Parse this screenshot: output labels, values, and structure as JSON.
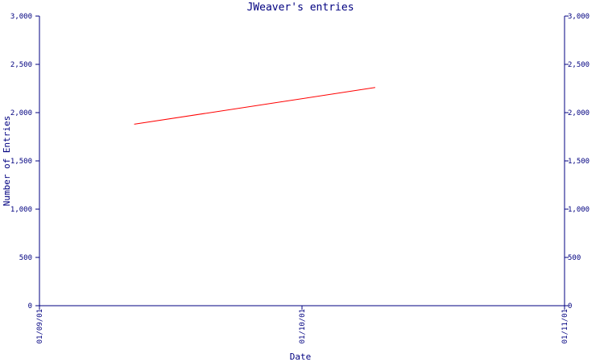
{
  "chart_data": {
    "type": "line",
    "title": "JWeaver's entries",
    "xlabel": "Date",
    "ylabel": "Number of Entries",
    "x_ticks": [
      "01/09/01",
      "01/10/01",
      "01/11/01"
    ],
    "y_ticks": [
      "0",
      "500",
      "1,000",
      "1,500",
      "2,000",
      "2,500",
      "3,000"
    ],
    "y_tick_values": [
      0,
      500,
      1000,
      1500,
      2000,
      2500,
      3000
    ],
    "ylim": [
      0,
      3000
    ],
    "xlim": [
      "2001-09-01",
      "2001-11-01"
    ],
    "grid": false,
    "series": [
      {
        "x": [
          "2001-09-12",
          "2001-10-10"
        ],
        "values": [
          1880,
          2260
        ],
        "color": "#ff0000"
      }
    ],
    "colors": {
      "axis": "#000080",
      "text": "#000080",
      "line": "#ff0000",
      "background": "#ffffff"
    }
  }
}
